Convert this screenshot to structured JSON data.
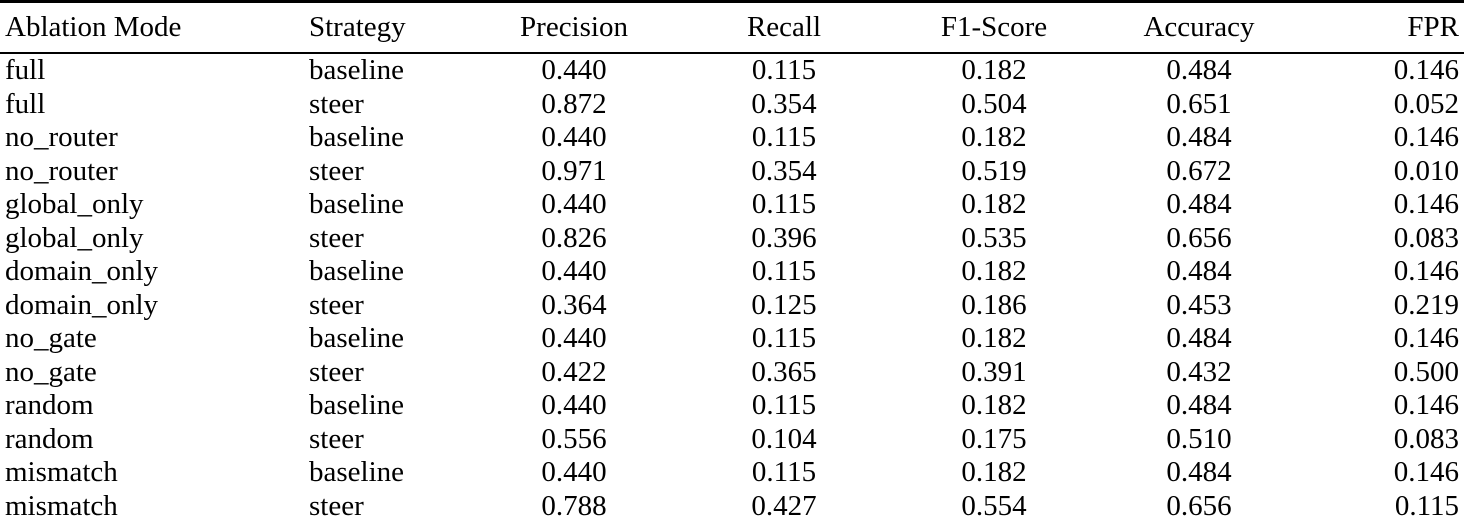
{
  "table": {
    "columns": [
      {
        "label": "Ablation Mode",
        "align": "left"
      },
      {
        "label": "Strategy",
        "align": "left"
      },
      {
        "label": "Precision",
        "align": "center"
      },
      {
        "label": "Recall",
        "align": "center"
      },
      {
        "label": "F1-Score",
        "align": "center"
      },
      {
        "label": "Accuracy",
        "align": "center"
      },
      {
        "label": "FPR",
        "align": "right"
      }
    ],
    "rows": [
      [
        "full",
        "baseline",
        "0.440",
        "0.115",
        "0.182",
        "0.484",
        "0.146"
      ],
      [
        "full",
        "steer",
        "0.872",
        "0.354",
        "0.504",
        "0.651",
        "0.052"
      ],
      [
        "no_router",
        "baseline",
        "0.440",
        "0.115",
        "0.182",
        "0.484",
        "0.146"
      ],
      [
        "no_router",
        "steer",
        "0.971",
        "0.354",
        "0.519",
        "0.672",
        "0.010"
      ],
      [
        "global_only",
        "baseline",
        "0.440",
        "0.115",
        "0.182",
        "0.484",
        "0.146"
      ],
      [
        "global_only",
        "steer",
        "0.826",
        "0.396",
        "0.535",
        "0.656",
        "0.083"
      ],
      [
        "domain_only",
        "baseline",
        "0.440",
        "0.115",
        "0.182",
        "0.484",
        "0.146"
      ],
      [
        "domain_only",
        "steer",
        "0.364",
        "0.125",
        "0.186",
        "0.453",
        "0.219"
      ],
      [
        "no_gate",
        "baseline",
        "0.440",
        "0.115",
        "0.182",
        "0.484",
        "0.146"
      ],
      [
        "no_gate",
        "steer",
        "0.422",
        "0.365",
        "0.391",
        "0.432",
        "0.500"
      ],
      [
        "random",
        "baseline",
        "0.440",
        "0.115",
        "0.182",
        "0.484",
        "0.146"
      ],
      [
        "random",
        "steer",
        "0.556",
        "0.104",
        "0.175",
        "0.510",
        "0.083"
      ],
      [
        "mismatch",
        "baseline",
        "0.440",
        "0.115",
        "0.182",
        "0.484",
        "0.146"
      ],
      [
        "mismatch",
        "steer",
        "0.788",
        "0.427",
        "0.554",
        "0.656",
        "0.115"
      ]
    ]
  },
  "chart_data": {
    "type": "table",
    "columns": [
      "Ablation Mode",
      "Strategy",
      "Precision",
      "Recall",
      "F1-Score",
      "Accuracy",
      "FPR"
    ],
    "rows": [
      [
        "full",
        "baseline",
        0.44,
        0.115,
        0.182,
        0.484,
        0.146
      ],
      [
        "full",
        "steer",
        0.872,
        0.354,
        0.504,
        0.651,
        0.052
      ],
      [
        "no_router",
        "baseline",
        0.44,
        0.115,
        0.182,
        0.484,
        0.146
      ],
      [
        "no_router",
        "steer",
        0.971,
        0.354,
        0.519,
        0.672,
        0.01
      ],
      [
        "global_only",
        "baseline",
        0.44,
        0.115,
        0.182,
        0.484,
        0.146
      ],
      [
        "global_only",
        "steer",
        0.826,
        0.396,
        0.535,
        0.656,
        0.083
      ],
      [
        "domain_only",
        "baseline",
        0.44,
        0.115,
        0.182,
        0.484,
        0.146
      ],
      [
        "domain_only",
        "steer",
        0.364,
        0.125,
        0.186,
        0.453,
        0.219
      ],
      [
        "no_gate",
        "baseline",
        0.44,
        0.115,
        0.182,
        0.484,
        0.146
      ],
      [
        "no_gate",
        "steer",
        0.422,
        0.365,
        0.391,
        0.432,
        0.5
      ],
      [
        "random",
        "baseline",
        0.44,
        0.115,
        0.182,
        0.484,
        0.146
      ],
      [
        "random",
        "steer",
        0.556,
        0.104,
        0.175,
        0.51,
        0.083
      ],
      [
        "mismatch",
        "baseline",
        0.44,
        0.115,
        0.182,
        0.484,
        0.146
      ],
      [
        "mismatch",
        "steer",
        0.788,
        0.427,
        0.554,
        0.656,
        0.115
      ]
    ],
    "colors": {
      "rule": "#000000",
      "text": "#000000",
      "background": "#ffffff"
    }
  }
}
